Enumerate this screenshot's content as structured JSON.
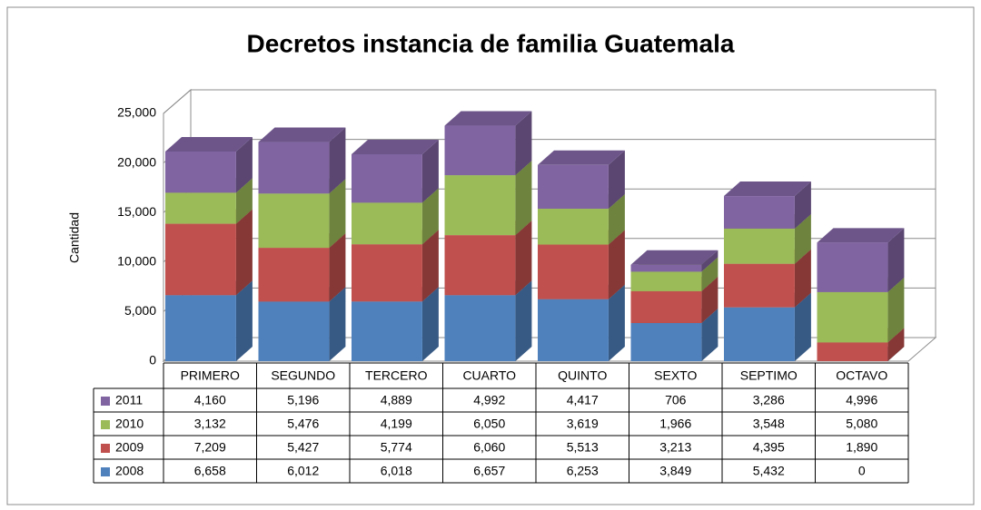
{
  "chart_data": {
    "type": "bar3d_stacked",
    "title": "Decretos instancia de familia Guatemala",
    "y_label": "Cantidad",
    "categories": [
      "PRIMERO",
      "SEGUNDO",
      "TERCERO",
      "CUARTO",
      "QUINTO",
      "SEXTO",
      "SEPTIMO",
      "OCTAVO"
    ],
    "series": [
      {
        "name": "2008",
        "color": "#4f81bd",
        "values": [
          6658,
          6012,
          6018,
          6657,
          6253,
          3849,
          5432,
          0
        ],
        "value_labels": [
          "6,658",
          "6,012",
          "6,018",
          "6,657",
          "6,253",
          "3,849",
          "5,432",
          "0"
        ]
      },
      {
        "name": "2009",
        "color": "#c0504d",
        "values": [
          7209,
          5427,
          5774,
          6060,
          5513,
          3213,
          4395,
          1890
        ],
        "value_labels": [
          "7,209",
          "5,427",
          "5,774",
          "6,060",
          "5,513",
          "3,213",
          "4,395",
          "1,890"
        ]
      },
      {
        "name": "2010",
        "color": "#9bbb59",
        "values": [
          3132,
          5476,
          4199,
          6050,
          3619,
          1966,
          3548,
          5080
        ],
        "value_labels": [
          "3,132",
          "5,476",
          "4,199",
          "6,050",
          "3,619",
          "1,966",
          "3,548",
          "5,080"
        ]
      },
      {
        "name": "2011",
        "color": "#8064a2",
        "values": [
          4160,
          5196,
          4889,
          4992,
          4417,
          706,
          3286,
          4996
        ],
        "value_labels": [
          "4,160",
          "5,196",
          "4,889",
          "4,992",
          "4,417",
          "706",
          "3,286",
          "4,996"
        ]
      }
    ],
    "ylim": [
      0,
      25000
    ],
    "yticks": [
      0,
      {
        "value": 5000,
        "label": "5,000"
      },
      {
        "value": 10000,
        "label": "10,000"
      },
      {
        "value": 15000,
        "label": "15,000"
      },
      {
        "value": 20000,
        "label": "20,000"
      },
      {
        "value": 25000,
        "label": "25,000"
      }
    ],
    "grid": true
  }
}
